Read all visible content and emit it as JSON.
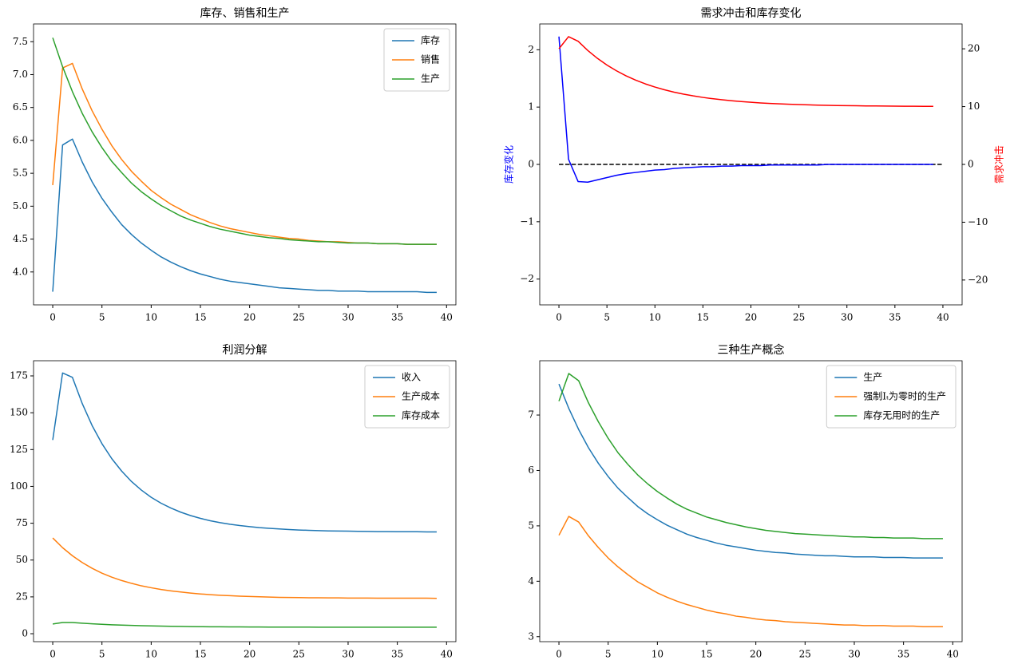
{
  "chart_data": [
    {
      "type": "line",
      "title": "库存、销售和生产",
      "x": [
        0,
        1,
        2,
        3,
        4,
        5,
        6,
        7,
        8,
        9,
        10,
        11,
        12,
        13,
        14,
        15,
        16,
        17,
        18,
        19,
        20,
        21,
        22,
        23,
        24,
        25,
        26,
        27,
        28,
        29,
        30,
        31,
        32,
        33,
        34,
        35,
        36,
        37,
        38,
        39
      ],
      "series": [
        {
          "name": "库存",
          "color": "#1f77b4",
          "values": [
            3.7,
            5.93,
            6.02,
            5.67,
            5.37,
            5.12,
            4.91,
            4.72,
            4.57,
            4.44,
            4.33,
            4.23,
            4.15,
            4.08,
            4.02,
            3.97,
            3.93,
            3.89,
            3.86,
            3.84,
            3.82,
            3.8,
            3.78,
            3.76,
            3.75,
            3.74,
            3.73,
            3.72,
            3.72,
            3.71,
            3.71,
            3.71,
            3.7,
            3.7,
            3.7,
            3.7,
            3.7,
            3.7,
            3.69,
            3.69
          ]
        },
        {
          "name": "销售",
          "color": "#ff7f0e",
          "values": [
            5.32,
            7.1,
            7.17,
            6.78,
            6.45,
            6.17,
            5.92,
            5.71,
            5.53,
            5.38,
            5.24,
            5.13,
            5.03,
            4.95,
            4.87,
            4.81,
            4.75,
            4.7,
            4.66,
            4.63,
            4.6,
            4.57,
            4.55,
            4.53,
            4.51,
            4.5,
            4.48,
            4.47,
            4.46,
            4.46,
            4.45,
            4.44,
            4.44,
            4.43,
            4.43,
            4.43,
            4.42,
            4.42,
            4.42,
            4.42
          ]
        },
        {
          "name": "生产",
          "color": "#2ca02c",
          "values": [
            7.56,
            7.12,
            6.74,
            6.41,
            6.13,
            5.89,
            5.68,
            5.51,
            5.35,
            5.22,
            5.11,
            5.01,
            4.93,
            4.85,
            4.79,
            4.74,
            4.69,
            4.65,
            4.62,
            4.59,
            4.56,
            4.54,
            4.52,
            4.51,
            4.49,
            4.48,
            4.47,
            4.46,
            4.46,
            4.45,
            4.44,
            4.44,
            4.44,
            4.43,
            4.43,
            4.43,
            4.42,
            4.42,
            4.42,
            4.42
          ]
        }
      ],
      "xlim": [
        -1.95,
        40.95
      ],
      "xticks": [
        0,
        5,
        10,
        15,
        20,
        25,
        30,
        35,
        40
      ],
      "ylim": [
        3.5,
        7.77
      ],
      "yticks": [
        {
          "value": 4,
          "label": "4.0"
        },
        4.5,
        {
          "value": 5,
          "label": "5.0"
        },
        5.5,
        {
          "value": 6,
          "label": "6.0"
        },
        6.5,
        {
          "value": 7,
          "label": "7.0"
        },
        7.5
      ],
      "legend": "upper right"
    },
    {
      "type": "line",
      "title": "需求冲击和库存变化",
      "ylabel": "库存变化",
      "ylabel_color": "blue",
      "y2label": "需求冲击",
      "y2label_color": "red",
      "x": [
        0,
        1,
        2,
        3,
        4,
        5,
        6,
        7,
        8,
        9,
        10,
        11,
        12,
        13,
        14,
        15,
        16,
        17,
        18,
        19,
        20,
        21,
        22,
        23,
        24,
        25,
        26,
        27,
        28,
        29,
        30,
        31,
        32,
        33,
        34,
        35,
        36,
        37,
        38,
        39
      ],
      "series": [
        {
          "name": "库存变化",
          "color": "blue",
          "values": [
            2.23,
            0.09,
            -0.3,
            -0.31,
            -0.27,
            -0.23,
            -0.19,
            -0.16,
            -0.14,
            -0.12,
            -0.1,
            -0.09,
            -0.07,
            -0.06,
            -0.05,
            -0.04,
            -0.04,
            -0.03,
            -0.03,
            -0.02,
            -0.02,
            -0.02,
            -0.01,
            -0.01,
            -0.01,
            -0.01,
            -0.01,
            -0.01,
            0,
            0,
            0,
            0,
            0,
            0,
            0,
            0,
            0,
            0,
            0,
            0
          ]
        },
        {
          "name": "需求冲击",
          "color": "red",
          "axis": "y2",
          "values": [
            20.0,
            22.1,
            21.3,
            19.72,
            18.36,
            17.19,
            16.19,
            15.32,
            14.58,
            13.93,
            13.38,
            12.91,
            12.5,
            12.15,
            11.85,
            11.59,
            11.37,
            11.18,
            11.01,
            10.87,
            10.75,
            10.64,
            10.55,
            10.48,
            10.41,
            10.35,
            10.3,
            10.26,
            10.22,
            10.19,
            10.17,
            10.14,
            10.12,
            10.11,
            10.09,
            10.08,
            10.07,
            10.06,
            10.05,
            10.04
          ]
        }
      ],
      "hlines": [
        {
          "y": 0,
          "xmin": 0,
          "xmax": 40,
          "color": "black",
          "linestyle": "dashed"
        }
      ],
      "xlim": [
        -2,
        42
      ],
      "xticks": [
        0,
        5,
        10,
        15,
        20,
        25,
        30,
        35,
        40
      ],
      "ylim": [
        -2.45,
        2.45
      ],
      "yticks": [
        {
          "value": -2,
          "label": "−2"
        },
        {
          "value": -1,
          "label": "−1"
        },
        0,
        1,
        2
      ],
      "y2lim": [
        -24.3,
        24.3
      ],
      "y2ticks": [
        {
          "value": -20,
          "label": "−20"
        },
        {
          "value": -10,
          "label": "−10"
        },
        0,
        10,
        20
      ]
    },
    {
      "type": "line",
      "title": "利润分解",
      "x": [
        0,
        1,
        2,
        3,
        4,
        5,
        6,
        7,
        8,
        9,
        10,
        11,
        12,
        13,
        14,
        15,
        16,
        17,
        18,
        19,
        20,
        21,
        22,
        23,
        24,
        25,
        26,
        27,
        28,
        29,
        30,
        31,
        32,
        33,
        34,
        35,
        36,
        37,
        38,
        39
      ],
      "series": [
        {
          "name": "收入",
          "color": "#1f77b4",
          "values": [
            131.5,
            177,
            174,
            156.2,
            141.3,
            129.0,
            118.8,
            110.4,
            103.3,
            97.5,
            92.6,
            88.6,
            85.3,
            82.5,
            80.2,
            78.3,
            76.7,
            75.4,
            74.3,
            73.4,
            72.7,
            72.0,
            71.5,
            71.1,
            70.7,
            70.4,
            70.2,
            70.0,
            69.8,
            69.7,
            69.6,
            69.5,
            69.4,
            69.3,
            69.3,
            69.2,
            69.2,
            69.2,
            69.1,
            69.1
          ]
        },
        {
          "name": "生产成本",
          "color": "#ff7f0e",
          "values": [
            65.0,
            58.4,
            52.9,
            48.3,
            44.4,
            41.1,
            38.4,
            36.1,
            34.2,
            32.5,
            31.2,
            30.0,
            29.1,
            28.3,
            27.6,
            27.0,
            26.5,
            26.1,
            25.8,
            25.5,
            25.3,
            25.1,
            24.9,
            24.7,
            24.6,
            24.5,
            24.4,
            24.4,
            24.3,
            24.3,
            24.2,
            24.2,
            24.2,
            24.1,
            24.1,
            24.1,
            24.1,
            24.1,
            24.1,
            24.0
          ]
        },
        {
          "name": "库存成本",
          "color": "#2ca02c",
          "values": [
            6.6,
            7.6,
            7.6,
            7.12,
            6.71,
            6.37,
            6.07,
            5.82,
            5.61,
            5.43,
            5.27,
            5.14,
            5.03,
            4.93,
            4.85,
            4.78,
            4.72,
            4.67,
            4.63,
            4.6,
            4.57,
            4.55,
            4.52,
            4.51,
            4.49,
            4.48,
            4.46,
            4.45,
            4.45,
            4.44,
            4.43,
            4.43,
            4.42,
            4.42,
            4.42,
            4.41,
            4.41,
            4.41,
            4.41,
            4.41
          ]
        }
      ],
      "xlim": [
        -1.95,
        40.95
      ],
      "xticks": [
        0,
        5,
        10,
        15,
        20,
        25,
        30,
        35,
        40
      ],
      "ylim": [
        -5.4,
        185.3
      ],
      "yticks": [
        0,
        25,
        50,
        75,
        100,
        125,
        150,
        175
      ],
      "legend": "upper right"
    },
    {
      "type": "line",
      "title": "三种生产概念",
      "x": [
        0,
        1,
        2,
        3,
        4,
        5,
        6,
        7,
        8,
        9,
        10,
        11,
        12,
        13,
        14,
        15,
        16,
        17,
        18,
        19,
        20,
        21,
        22,
        23,
        24,
        25,
        26,
        27,
        28,
        29,
        30,
        31,
        32,
        33,
        34,
        35,
        36,
        37,
        38,
        39
      ],
      "series": [
        {
          "name": "生产",
          "color": "#1f77b4",
          "values": [
            7.56,
            7.12,
            6.74,
            6.41,
            6.13,
            5.89,
            5.68,
            5.51,
            5.35,
            5.22,
            5.11,
            5.01,
            4.93,
            4.85,
            4.79,
            4.74,
            4.69,
            4.65,
            4.62,
            4.59,
            4.56,
            4.54,
            4.52,
            4.51,
            4.49,
            4.48,
            4.47,
            4.46,
            4.46,
            4.45,
            4.44,
            4.44,
            4.44,
            4.43,
            4.43,
            4.43,
            4.42,
            4.42,
            4.42,
            4.42
          ]
        },
        {
          "name": "强制Iₜ为零时的生产",
          "color": "#ff7f0e",
          "values": [
            4.83,
            5.17,
            5.07,
            4.82,
            4.61,
            4.42,
            4.26,
            4.12,
            3.99,
            3.89,
            3.79,
            3.71,
            3.64,
            3.58,
            3.53,
            3.48,
            3.44,
            3.41,
            3.37,
            3.35,
            3.32,
            3.3,
            3.29,
            3.27,
            3.26,
            3.25,
            3.24,
            3.23,
            3.22,
            3.21,
            3.21,
            3.2,
            3.2,
            3.2,
            3.19,
            3.19,
            3.19,
            3.18,
            3.18,
            3.18
          ]
        },
        {
          "name": "库存无用时的生产",
          "color": "#2ca02c",
          "values": [
            7.25,
            7.75,
            7.62,
            7.22,
            6.88,
            6.58,
            6.32,
            6.11,
            5.92,
            5.76,
            5.62,
            5.5,
            5.39,
            5.3,
            5.23,
            5.16,
            5.11,
            5.06,
            5.02,
            4.98,
            4.95,
            4.92,
            4.9,
            4.88,
            4.86,
            4.85,
            4.84,
            4.83,
            4.82,
            4.81,
            4.8,
            4.8,
            4.79,
            4.79,
            4.78,
            4.78,
            4.78,
            4.77,
            4.77,
            4.77
          ]
        }
      ],
      "xlim": [
        -1.95,
        40.95
      ],
      "xticks": [
        0,
        5,
        10,
        15,
        20,
        25,
        30,
        35,
        40
      ],
      "ylim": [
        2.91,
        7.98
      ],
      "yticks": [
        3,
        4,
        5,
        6,
        7
      ],
      "legend": "upper right"
    }
  ]
}
